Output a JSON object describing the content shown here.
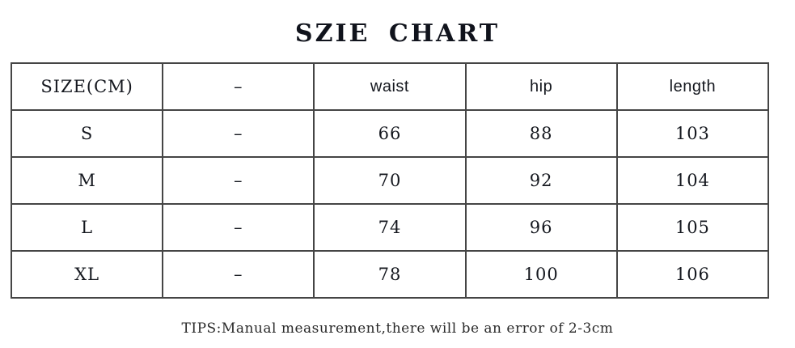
{
  "title": "SZIE CHART",
  "table": {
    "headers": [
      "SIZE(CM)",
      "–",
      "waist",
      "hip",
      "length"
    ],
    "rows": [
      [
        "S",
        "–",
        "66",
        "88",
        "103"
      ],
      [
        "M",
        "–",
        "70",
        "92",
        "104"
      ],
      [
        "L",
        "–",
        "74",
        "96",
        "105"
      ],
      [
        "XL",
        "–",
        "78",
        "100",
        "106"
      ]
    ]
  },
  "tips": "TIPS:Manual measurement,there will be an error of 2-3cm"
}
